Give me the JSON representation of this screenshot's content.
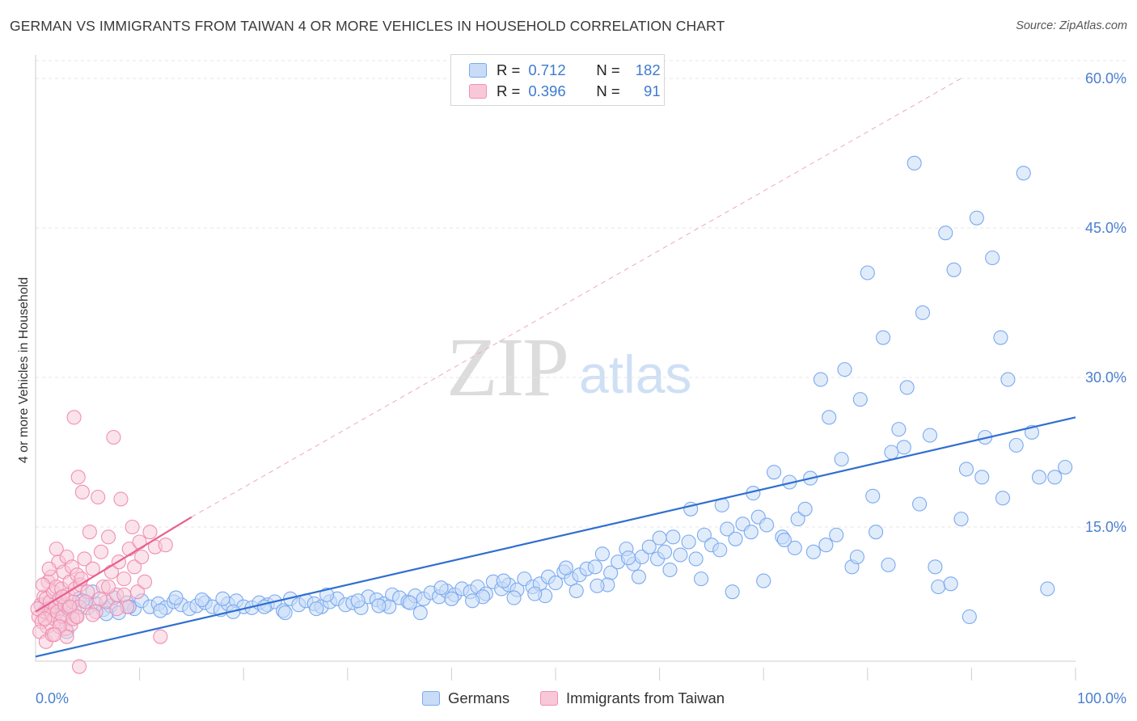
{
  "title": "GERMAN VS IMMIGRANTS FROM TAIWAN 4 OR MORE VEHICLES IN HOUSEHOLD CORRELATION CHART",
  "source": "Source: ZipAtlas.com",
  "watermark": {
    "zip": "ZIP",
    "atlas": "atlas"
  },
  "colors": {
    "germans": "#7aaaf0",
    "germans_fill": "#c8dcf8",
    "germans_line": "#2f6fd0",
    "taiwan": "#f090b0",
    "taiwan_fill": "#f8c8d8",
    "taiwan_line": "#e8608e",
    "tick": "#4a7fd0"
  },
  "legend": {
    "r_label": "R =",
    "n_label": "N =",
    "germans": {
      "r": "0.712",
      "n": "182"
    },
    "taiwan": {
      "r": "0.396",
      "n": "91"
    }
  },
  "chart_data": {
    "type": "scatter",
    "title": "GERMAN VS IMMIGRANTS FROM TAIWAN 4 OR MORE VEHICLES IN HOUSEHOLD CORRELATION CHART",
    "xlabel": "",
    "ylabel": "4 or more Vehicles in Household",
    "xlim": [
      0,
      100
    ],
    "ylim": [
      0,
      62
    ],
    "x_tick_labels": [
      "0.0%",
      "100.0%"
    ],
    "y_ticks": [
      15,
      30,
      45,
      60
    ],
    "y_tick_labels": [
      "15.0%",
      "30.0%",
      "45.0%",
      "60.0%"
    ],
    "grid": true,
    "legend_position": "top-center",
    "series": [
      {
        "name": "Germans",
        "trend": {
          "x": [
            0,
            100
          ],
          "y": [
            2.0,
            26.0
          ]
        },
        "points": [
          [
            0.5,
            7.2
          ],
          [
            1.2,
            6.8
          ],
          [
            2.0,
            7.5
          ],
          [
            2.8,
            7.0
          ],
          [
            3.5,
            6.5
          ],
          [
            4.2,
            7.8
          ],
          [
            5.0,
            6.9
          ],
          [
            5.8,
            7.3
          ],
          [
            6.5,
            6.7
          ],
          [
            7.2,
            7.1
          ],
          [
            8.0,
            6.4
          ],
          [
            8.8,
            7.4
          ],
          [
            9.5,
            6.8
          ],
          [
            10.2,
            7.6
          ],
          [
            11.0,
            7.0
          ],
          [
            11.8,
            7.3
          ],
          [
            12.5,
            6.9
          ],
          [
            13.3,
            7.5
          ],
          [
            14.0,
            7.2
          ],
          [
            14.8,
            6.8
          ],
          [
            15.5,
            7.1
          ],
          [
            16.3,
            7.4
          ],
          [
            17.0,
            7.0
          ],
          [
            17.8,
            6.7
          ],
          [
            18.5,
            7.3
          ],
          [
            19.3,
            7.6
          ],
          [
            20.0,
            7.0
          ],
          [
            20.8,
            6.9
          ],
          [
            21.5,
            7.4
          ],
          [
            22.3,
            7.2
          ],
          [
            23.0,
            7.5
          ],
          [
            23.8,
            6.6
          ],
          [
            24.5,
            7.8
          ],
          [
            25.3,
            7.2
          ],
          [
            26.0,
            7.6
          ],
          [
            26.8,
            7.3
          ],
          [
            27.5,
            7.0
          ],
          [
            28.3,
            7.5
          ],
          [
            29.0,
            7.8
          ],
          [
            29.8,
            7.2
          ],
          [
            30.5,
            7.4
          ],
          [
            31.3,
            6.9
          ],
          [
            32.0,
            8.0
          ],
          [
            32.8,
            7.7
          ],
          [
            33.5,
            7.3
          ],
          [
            34.3,
            8.2
          ],
          [
            35.0,
            7.9
          ],
          [
            35.8,
            7.5
          ],
          [
            36.5,
            8.1
          ],
          [
            37.3,
            7.8
          ],
          [
            38.0,
            8.4
          ],
          [
            38.8,
            8.0
          ],
          [
            39.5,
            8.6
          ],
          [
            40.3,
            8.2
          ],
          [
            41.0,
            8.8
          ],
          [
            41.8,
            8.5
          ],
          [
            42.5,
            9.0
          ],
          [
            43.3,
            8.3
          ],
          [
            44.0,
            9.5
          ],
          [
            44.8,
            8.8
          ],
          [
            45.5,
            9.2
          ],
          [
            46.3,
            8.7
          ],
          [
            47.0,
            9.8
          ],
          [
            47.8,
            9.0
          ],
          [
            48.5,
            9.3
          ],
          [
            49.3,
            10.0
          ],
          [
            50.0,
            9.4
          ],
          [
            50.8,
            10.5
          ],
          [
            51.5,
            9.8
          ],
          [
            52.3,
            10.2
          ],
          [
            53.0,
            10.8
          ],
          [
            53.8,
            11.0
          ],
          [
            54.5,
            12.3
          ],
          [
            55.3,
            10.4
          ],
          [
            56.0,
            11.5
          ],
          [
            56.8,
            12.8
          ],
          [
            57.5,
            11.3
          ],
          [
            58.3,
            12.0
          ],
          [
            59.0,
            13.0
          ],
          [
            59.8,
            11.8
          ],
          [
            60.5,
            12.5
          ],
          [
            61.3,
            14.0
          ],
          [
            62.0,
            12.2
          ],
          [
            62.8,
            13.5
          ],
          [
            63.5,
            11.8
          ],
          [
            64.3,
            14.2
          ],
          [
            65.0,
            13.2
          ],
          [
            65.8,
            12.7
          ],
          [
            66.5,
            14.8
          ],
          [
            67.3,
            13.8
          ],
          [
            68.0,
            15.3
          ],
          [
            68.8,
            14.5
          ],
          [
            69.5,
            16.0
          ],
          [
            70.3,
            15.2
          ],
          [
            71.0,
            20.5
          ],
          [
            71.8,
            14.0
          ],
          [
            72.5,
            19.5
          ],
          [
            73.3,
            15.8
          ],
          [
            74.0,
            16.8
          ],
          [
            74.8,
            12.5
          ],
          [
            75.5,
            29.8
          ],
          [
            76.3,
            26.0
          ],
          [
            77.0,
            14.2
          ],
          [
            77.8,
            30.8
          ],
          [
            78.5,
            11.0
          ],
          [
            79.3,
            27.8
          ],
          [
            80.0,
            40.5
          ],
          [
            80.8,
            14.5
          ],
          [
            81.5,
            34.0
          ],
          [
            82.3,
            22.5
          ],
          [
            83.0,
            24.8
          ],
          [
            83.8,
            29.0
          ],
          [
            84.5,
            51.5
          ],
          [
            85.3,
            36.5
          ],
          [
            86.0,
            24.2
          ],
          [
            86.8,
            9.0
          ],
          [
            87.5,
            44.5
          ],
          [
            88.3,
            40.8
          ],
          [
            89.0,
            15.8
          ],
          [
            89.8,
            6.0
          ],
          [
            90.5,
            46.0
          ],
          [
            91.3,
            24.0
          ],
          [
            92.0,
            42.0
          ],
          [
            92.8,
            34.0
          ],
          [
            93.5,
            29.8
          ],
          [
            94.3,
            23.2
          ],
          [
            95.0,
            50.5
          ],
          [
            95.8,
            24.5
          ],
          [
            96.5,
            20.0
          ],
          [
            97.3,
            8.8
          ],
          [
            98.0,
            20.0
          ],
          [
            99.0,
            21.0
          ],
          [
            2.5,
            6.2
          ],
          [
            4.5,
            7.6
          ],
          [
            6.8,
            6.3
          ],
          [
            9.0,
            7.0
          ],
          [
            12.0,
            6.6
          ],
          [
            16.0,
            7.7
          ],
          [
            19.0,
            6.5
          ],
          [
            22.0,
            7.0
          ],
          [
            27.0,
            6.8
          ],
          [
            31.0,
            7.6
          ],
          [
            34.0,
            7.0
          ],
          [
            37.0,
            6.4
          ],
          [
            40.0,
            7.8
          ],
          [
            43.0,
            8.0
          ],
          [
            46.0,
            7.9
          ],
          [
            49.0,
            8.1
          ],
          [
            52.0,
            8.6
          ],
          [
            55.0,
            9.2
          ],
          [
            58.0,
            10.0
          ],
          [
            61.0,
            10.7
          ],
          [
            64.0,
            9.8
          ],
          [
            67.0,
            8.5
          ],
          [
            70.0,
            9.6
          ],
          [
            73.0,
            12.9
          ],
          [
            76.0,
            13.2
          ],
          [
            79.0,
            12.0
          ],
          [
            82.0,
            11.2
          ],
          [
            85.0,
            17.3
          ],
          [
            88.0,
            9.3
          ],
          [
            91.0,
            20.0
          ],
          [
            3.0,
            4.5
          ],
          [
            5.5,
            8.5
          ],
          [
            7.5,
            7.9
          ],
          [
            13.5,
            7.9
          ],
          [
            18.0,
            7.8
          ],
          [
            24.0,
            6.4
          ],
          [
            28.0,
            8.2
          ],
          [
            33.0,
            7.1
          ],
          [
            36.0,
            7.4
          ],
          [
            39.0,
            8.9
          ],
          [
            42.0,
            7.6
          ],
          [
            45.0,
            9.6
          ],
          [
            48.0,
            8.3
          ],
          [
            51.0,
            10.9
          ],
          [
            54.0,
            9.1
          ],
          [
            57.0,
            11.9
          ],
          [
            60.0,
            13.9
          ],
          [
            63.0,
            16.8
          ],
          [
            66.0,
            17.2
          ],
          [
            69.0,
            18.4
          ],
          [
            72.0,
            13.7
          ],
          [
            74.5,
            19.9
          ],
          [
            77.5,
            21.8
          ],
          [
            80.5,
            18.1
          ],
          [
            83.5,
            23.0
          ],
          [
            86.5,
            11.0
          ],
          [
            89.5,
            20.8
          ],
          [
            93.0,
            17.9
          ]
        ]
      },
      {
        "name": "Immigrants from Taiwan",
        "trend": {
          "x": [
            0,
            15
          ],
          "y": [
            6.5,
            16.0
          ]
        },
        "extension": {
          "x": [
            15,
            89
          ],
          "y": [
            16.0,
            60.0
          ]
        },
        "points": [
          [
            0.3,
            6.0
          ],
          [
            0.5,
            7.2
          ],
          [
            0.6,
            5.5
          ],
          [
            0.8,
            8.0
          ],
          [
            0.9,
            6.5
          ],
          [
            1.0,
            7.8
          ],
          [
            1.1,
            5.0
          ],
          [
            1.2,
            9.5
          ],
          [
            1.3,
            6.8
          ],
          [
            1.4,
            7.5
          ],
          [
            1.5,
            10.0
          ],
          [
            1.6,
            6.2
          ],
          [
            1.7,
            8.5
          ],
          [
            1.8,
            5.8
          ],
          [
            1.9,
            7.0
          ],
          [
            2.0,
            9.0
          ],
          [
            2.1,
            6.5
          ],
          [
            2.2,
            11.5
          ],
          [
            2.3,
            7.8
          ],
          [
            2.4,
            5.5
          ],
          [
            2.5,
            8.8
          ],
          [
            2.6,
            6.0
          ],
          [
            2.7,
            10.5
          ],
          [
            2.8,
            7.2
          ],
          [
            2.9,
            4.8
          ],
          [
            3.0,
            12.0
          ],
          [
            3.1,
            8.2
          ],
          [
            3.2,
            6.8
          ],
          [
            3.3,
            9.5
          ],
          [
            3.4,
            5.2
          ],
          [
            3.5,
            11.0
          ],
          [
            3.6,
            7.5
          ],
          [
            3.7,
            26.0
          ],
          [
            3.8,
            8.8
          ],
          [
            3.9,
            6.0
          ],
          [
            4.0,
            10.2
          ],
          [
            4.1,
            20.0
          ],
          [
            4.2,
            7.0
          ],
          [
            4.3,
            9.2
          ],
          [
            4.5,
            18.5
          ],
          [
            4.7,
            11.8
          ],
          [
            5.0,
            8.5
          ],
          [
            5.2,
            14.5
          ],
          [
            5.5,
            10.8
          ],
          [
            5.8,
            6.5
          ],
          [
            6.0,
            18.0
          ],
          [
            6.3,
            12.5
          ],
          [
            6.5,
            9.0
          ],
          [
            6.8,
            7.5
          ],
          [
            7.0,
            14.0
          ],
          [
            7.3,
            10.5
          ],
          [
            7.5,
            24.0
          ],
          [
            7.8,
            8.2
          ],
          [
            8.0,
            11.5
          ],
          [
            8.2,
            17.8
          ],
          [
            8.5,
            9.8
          ],
          [
            8.8,
            7.0
          ],
          [
            9.0,
            12.8
          ],
          [
            9.3,
            15.0
          ],
          [
            9.5,
            11.0
          ],
          [
            9.8,
            8.5
          ],
          [
            10.0,
            13.5
          ],
          [
            10.2,
            12.0
          ],
          [
            10.5,
            9.5
          ],
          [
            11.0,
            14.5
          ],
          [
            11.5,
            13.0
          ],
          [
            12.0,
            4.0
          ],
          [
            12.5,
            13.2
          ],
          [
            0.4,
            4.5
          ],
          [
            0.7,
            9.2
          ],
          [
            1.0,
            3.5
          ],
          [
            1.3,
            10.8
          ],
          [
            1.6,
            4.2
          ],
          [
            2.0,
            12.8
          ],
          [
            2.3,
            5.0
          ],
          [
            2.6,
            8.0
          ],
          [
            3.0,
            4.0
          ],
          [
            3.3,
            7.0
          ],
          [
            3.6,
            5.8
          ],
          [
            4.0,
            6.0
          ],
          [
            4.4,
            9.8
          ],
          [
            4.8,
            7.5
          ],
          [
            5.5,
            6.2
          ],
          [
            6.2,
            7.8
          ],
          [
            7.0,
            9.0
          ],
          [
            7.8,
            6.8
          ],
          [
            8.5,
            8.2
          ],
          [
            0.2,
            6.8
          ],
          [
            0.9,
            5.8
          ],
          [
            1.8,
            4.2
          ],
          [
            4.2,
            1.0
          ]
        ]
      }
    ]
  },
  "axes": {
    "x_left": "0.0%",
    "x_right": "100.0%",
    "ylabel": "4 or more Vehicles in Household"
  },
  "bottom_legend": {
    "germans": "Germans",
    "taiwan": "Immigrants from Taiwan"
  }
}
